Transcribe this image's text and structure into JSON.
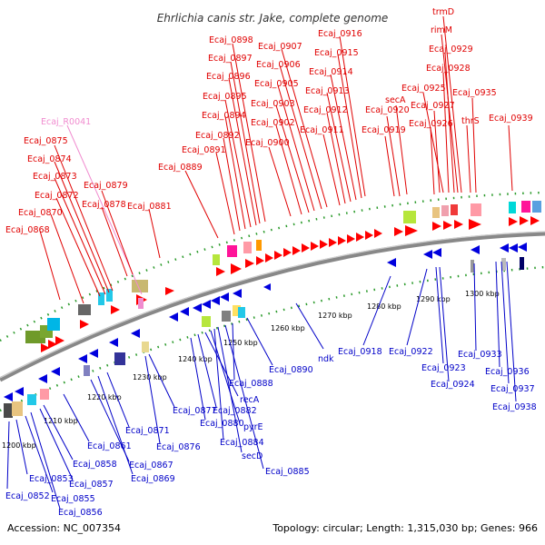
{
  "title": "Ehrlichia canis str. Jake, complete genome",
  "footer": {
    "accession": "Accession: NC_007354",
    "summary": "Topology: circular; Length: 1,315,030 bp; Genes: 966"
  },
  "scale_labels": [
    "1200 kbp",
    "1210 kbp",
    "1220 kbp",
    "1230 kbp",
    "1240 kbp",
    "1250 kbp",
    "1260 kbp",
    "1270 kbp",
    "1280 kbp",
    "1290 kbp",
    "1300 kbp"
  ],
  "colors": {
    "forward": "#ff0000",
    "reverse": "#0000dd",
    "rna": "#f08ccf",
    "backbone": "#888888"
  },
  "top_labels": [
    "Ecaj_R0041",
    "Ecaj_0875",
    "Ecaj_0874",
    "Ecaj_0873",
    "Ecaj_0872",
    "Ecaj_0870",
    "Ecaj_0868",
    "Ecaj_0879",
    "Ecaj_0878",
    "Ecaj_0881",
    "Ecaj_0889",
    "Ecaj_0891",
    "Ecaj_0892",
    "Ecaj_0894",
    "Ecaj_0895",
    "Ecaj_0896",
    "Ecaj_0897",
    "Ecaj_0898",
    "Ecaj_0900",
    "Ecaj_0902",
    "Ecaj_0903",
    "Ecaj_0905",
    "Ecaj_0906",
    "Ecaj_0907",
    "Ecaj_0911",
    "Ecaj_0912",
    "Ecaj_0913",
    "Ecaj_0914",
    "Ecaj_0915",
    "Ecaj_0916",
    "Ecaj_0919",
    "Ecaj_0920",
    "secA",
    "Ecaj_0926",
    "Ecaj_0927",
    "Ecaj_0925",
    "Ecaj_0928",
    "Ecaj_0929",
    "rimM",
    "trmD",
    "thrS",
    "Ecaj_0935",
    "Ecaj_0939"
  ],
  "bottom_labels": [
    "1200 kbp",
    "Ecaj_0852",
    "Ecaj_0853",
    "Ecaj_0855",
    "Ecaj_0856",
    "Ecaj_0857",
    "Ecaj_0858",
    "Ecaj_0861",
    "Ecaj_0867",
    "Ecaj_0869",
    "Ecaj_0871",
    "Ecaj_0876",
    "Ecaj_0877",
    "Ecaj_0880",
    "Ecaj_0882",
    "recA",
    "pyrE",
    "Ecaj_0884",
    "secD",
    "Ecaj_0885",
    "Ecaj_0888",
    "Ecaj_0890",
    "ndk",
    "Ecaj_0918",
    "Ecaj_0922",
    "Ecaj_0923",
    "Ecaj_0924",
    "Ecaj_0933",
    "Ecaj_0936",
    "Ecaj_0937",
    "Ecaj_0938"
  ]
}
